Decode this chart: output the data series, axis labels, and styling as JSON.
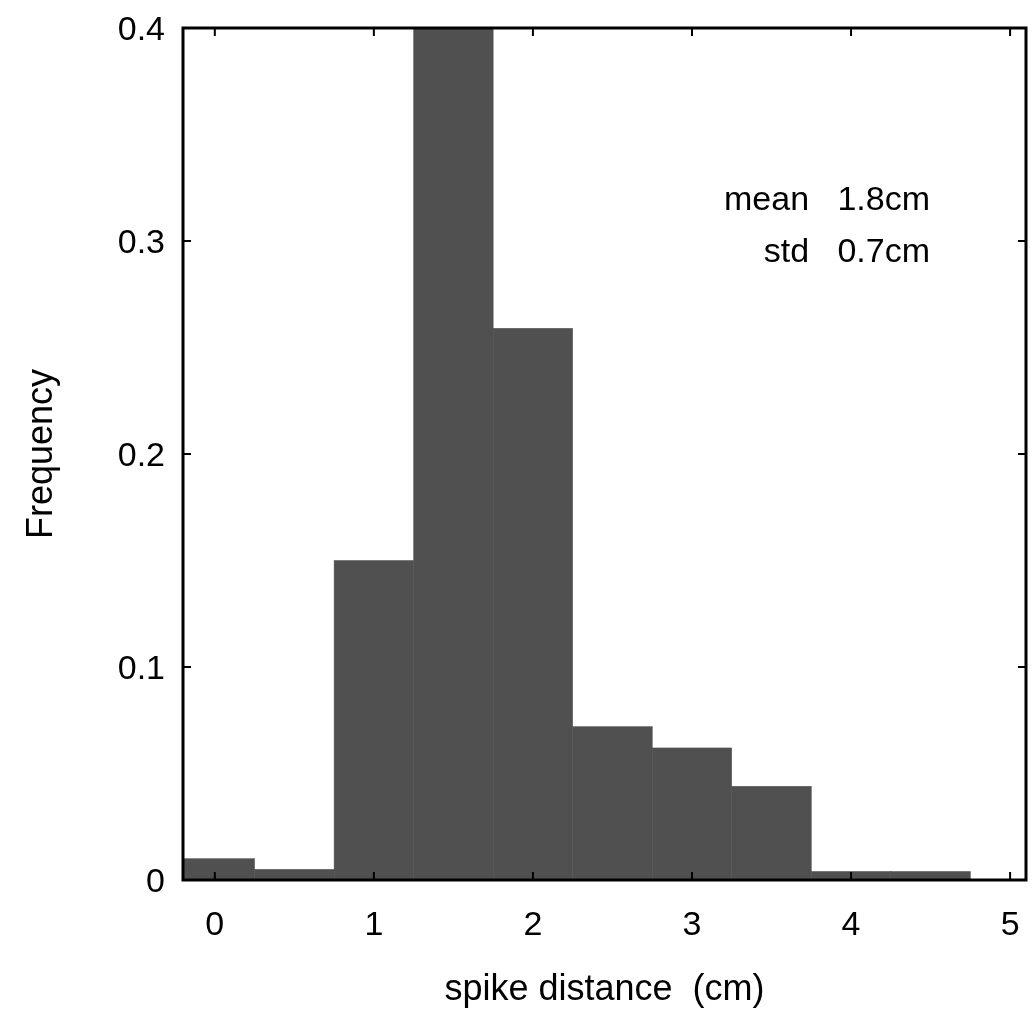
{
  "chart_data": {
    "type": "histogram",
    "xlabel": "spike distance  (cm)",
    "ylabel": "Frequency",
    "bins": [
      -0.2,
      0.25,
      0.75,
      1.25,
      1.75,
      2.25,
      2.75,
      3.25,
      3.75,
      4.25,
      4.75
    ],
    "values": [
      0.01,
      0.005,
      0.15,
      0.4,
      0.259,
      0.072,
      0.062,
      0.044,
      0.004,
      0.004
    ],
    "color": "#505050",
    "xlim": [
      -0.2,
      5.1
    ],
    "xticks": [
      0,
      1,
      2,
      3,
      4,
      5
    ],
    "ylim": [
      0,
      0.4
    ],
    "yticks": [
      {
        "value": 0,
        "label": "0"
      },
      0.1,
      0.2,
      0.3,
      0.4
    ],
    "annotations": [
      "mean   1.8cm",
      "std   0.7cm"
    ]
  }
}
